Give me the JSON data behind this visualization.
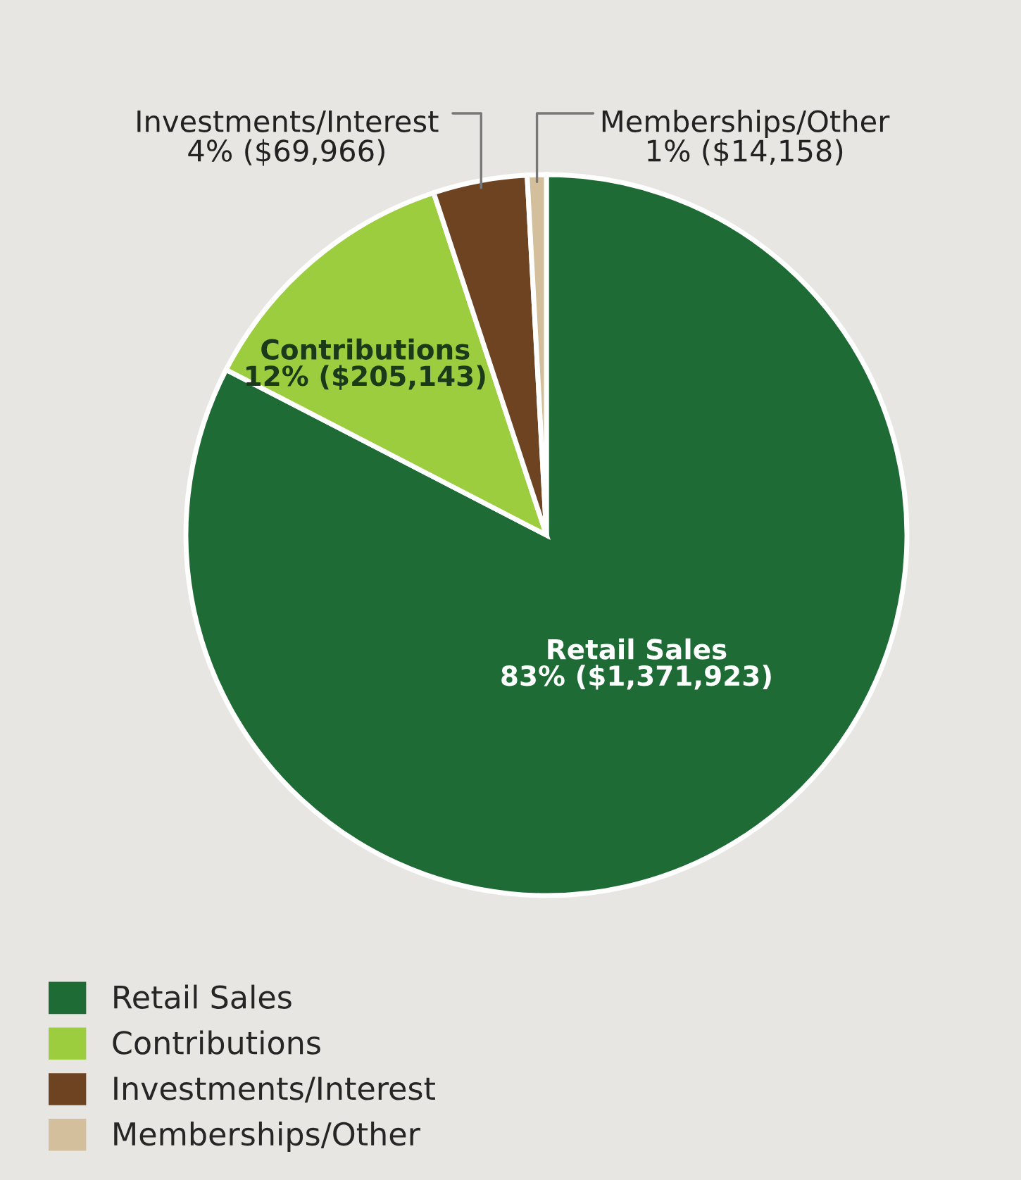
{
  "chart_data": {
    "type": "pie",
    "categories": [
      "Retail Sales",
      "Contributions",
      "Investments/Interest",
      "Memberships/Other"
    ],
    "values": [
      1371923,
      205143,
      69966,
      14158
    ],
    "value_labels": [
      "83% ($1,371,923)",
      "12% ($205,143)",
      "4% ($69,966)",
      "1% ($14,158)"
    ],
    "colors": [
      "#1f6b35",
      "#9ccd3e",
      "#6e4322",
      "#d3bf9c"
    ],
    "legend": "bottom left"
  }
}
